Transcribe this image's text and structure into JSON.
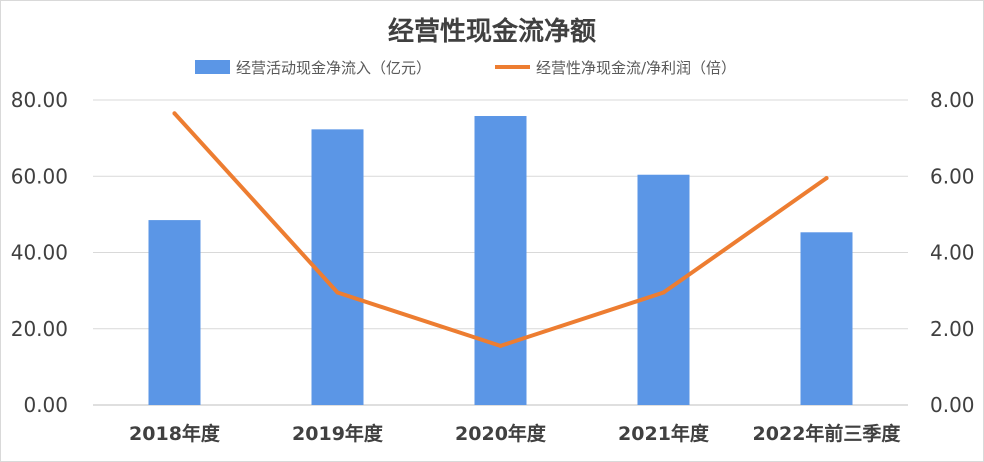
{
  "chart_data": {
    "type": "bar",
    "title": "经营性现金流净额",
    "categories": [
      "2018年度",
      "2019年度",
      "2020年度",
      "2021年度",
      "2022年前三季度"
    ],
    "series": [
      {
        "name": "经营活动现金净流入（亿元）",
        "type": "bar",
        "axis": "left",
        "color": "#5b96e6",
        "values": [
          48.5,
          72.3,
          75.8,
          60.4,
          45.3
        ]
      },
      {
        "name": "经营性净现金流/净利润（倍）",
        "type": "line",
        "axis": "right",
        "color": "#ed7d31",
        "values": [
          7.65,
          2.95,
          1.55,
          2.95,
          5.95
        ]
      }
    ],
    "y_left": {
      "min": 0,
      "max": 80,
      "ticks": [
        "0.00",
        "20.00",
        "40.00",
        "60.00",
        "80.00"
      ]
    },
    "y_right": {
      "min": 0,
      "max": 8,
      "ticks": [
        "0.00",
        "2.00",
        "4.00",
        "6.00",
        "8.00"
      ]
    },
    "grid": true,
    "legend_position": "top"
  }
}
